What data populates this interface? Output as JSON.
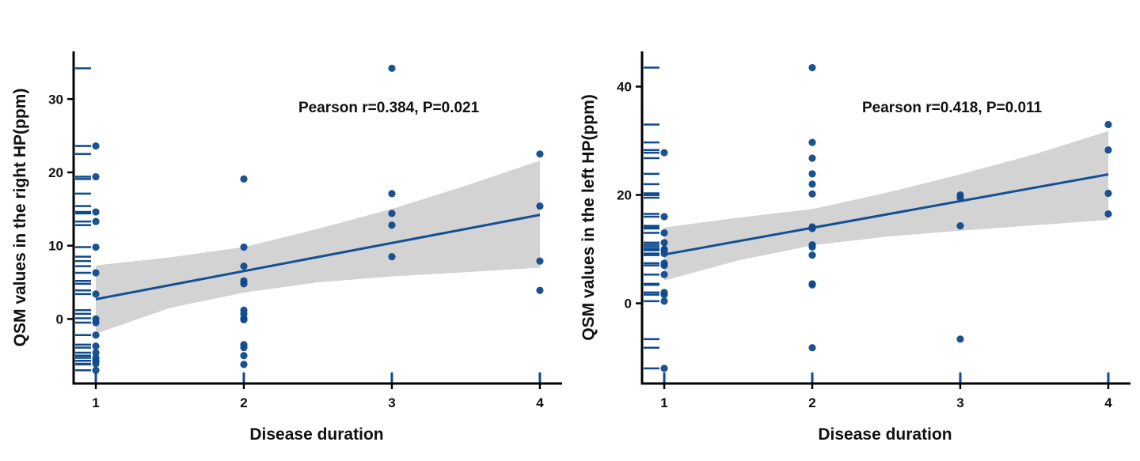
{
  "chart_data": [
    {
      "type": "scatter",
      "xlabel": "Disease duration",
      "ylabel": "QSM values in the right HP(ppm)",
      "annotation": "Pearson r=0.384, P=0.021",
      "xticks": [
        "1",
        "2",
        "3",
        "4"
      ],
      "yticks": [
        "0",
        "10",
        "20",
        "30"
      ],
      "xlim": [
        0.85,
        4.15
      ],
      "ylim": [
        -8.8,
        36.5
      ],
      "fit_line": [
        [
          1,
          2.7
        ],
        [
          4,
          14.2
        ]
      ],
      "confidence_band": {
        "x": [
          1,
          1.5,
          2,
          2.5,
          3,
          3.5,
          4
        ],
        "lower": [
          -2.0,
          1.5,
          3.6,
          5.0,
          5.8,
          6.4,
          7.0
        ],
        "upper": [
          7.3,
          8.4,
          9.8,
          12.3,
          15.0,
          18.2,
          21.6
        ]
      },
      "points": {
        "x": [
          1,
          1,
          1,
          1,
          1,
          1,
          1,
          1,
          1,
          1,
          1,
          1,
          1,
          1,
          1,
          1,
          2,
          2,
          2,
          2,
          2,
          2,
          2,
          2,
          2,
          2,
          2,
          2,
          2,
          3,
          3,
          3,
          3,
          3,
          4,
          4,
          4,
          4
        ],
        "y": [
          23.6,
          19.4,
          14.6,
          13.3,
          9.8,
          6.3,
          3.4,
          0.0,
          -0.5,
          -2.2,
          -3.7,
          -4.6,
          -5.3,
          -5.7,
          -6.1,
          -7.0,
          19.1,
          9.8,
          7.2,
          5.2,
          4.8,
          1.2,
          0.7,
          0.1,
          -0.1,
          -3.5,
          -3.9,
          -5.0,
          -6.2,
          34.2,
          17.1,
          14.4,
          12.8,
          8.5,
          22.5,
          15.4,
          7.9,
          3.9
        ]
      },
      "rug_y": [
        34.2,
        23.6,
        22.5,
        19.4,
        19.1,
        17.1,
        15.4,
        14.6,
        14.4,
        13.3,
        12.8,
        9.8,
        8.5,
        7.9,
        7.2,
        6.3,
        5.2,
        4.8,
        3.9,
        3.4,
        1.2,
        0.7,
        0.1,
        -0.5,
        -2.2,
        -3.5,
        -3.9,
        -4.6,
        -5.0,
        -5.3,
        -5.7,
        -6.1,
        -6.2,
        -7.0
      ],
      "rug_x_count": [
        4,
        1,
        1,
        1
      ]
    },
    {
      "type": "scatter",
      "xlabel": "Disease duration",
      "ylabel": "QSM values in the left HP(ppm)",
      "annotation": "Pearson r=0.418, P=0.011",
      "xticks": [
        "1",
        "2",
        "3",
        "4"
      ],
      "yticks": [
        "0",
        "20",
        "40"
      ],
      "xlim": [
        0.85,
        4.15
      ],
      "ylim": [
        -14.8,
        46.5
      ],
      "fit_line": [
        [
          1,
          9.0
        ],
        [
          4,
          23.8
        ]
      ],
      "confidence_band": {
        "x": [
          1,
          1.5,
          2,
          2.5,
          3,
          3.5,
          4
        ],
        "lower": [
          4.2,
          7.9,
          10.7,
          12.3,
          13.4,
          14.4,
          15.4
        ],
        "upper": [
          14.0,
          15.8,
          17.4,
          20.4,
          23.8,
          27.5,
          31.8
        ]
      },
      "points": {
        "x": [
          1,
          1,
          1,
          1,
          1,
          1,
          1,
          1,
          1,
          1,
          1,
          1,
          1,
          1,
          2,
          2,
          2,
          2,
          2,
          2,
          2,
          2,
          2,
          2,
          2,
          2,
          2,
          2,
          3,
          3,
          3,
          3,
          4,
          4,
          4,
          4
        ],
        "y": [
          27.8,
          16.0,
          13.0,
          11.2,
          10.0,
          9.8,
          9.2,
          7.4,
          7.0,
          5.3,
          2.0,
          1.6,
          0.4,
          -12.0,
          43.5,
          29.7,
          26.8,
          23.9,
          22.0,
          20.2,
          14.1,
          13.8,
          10.8,
          10.4,
          8.9,
          3.6,
          3.4,
          -8.2,
          20.0,
          19.5,
          14.3,
          -6.6,
          33.0,
          28.3,
          20.3,
          16.5
        ]
      },
      "rug_y": [
        43.5,
        33.0,
        29.7,
        28.3,
        27.8,
        26.8,
        23.9,
        22.0,
        20.3,
        20.2,
        20.0,
        19.5,
        16.5,
        16.0,
        14.3,
        14.1,
        13.8,
        13.0,
        11.2,
        10.8,
        10.4,
        10.0,
        9.8,
        9.2,
        8.9,
        7.4,
        7.0,
        5.3,
        3.6,
        3.4,
        2.0,
        1.6,
        0.4,
        -6.6,
        -8.2,
        -12.0
      ],
      "rug_x_count": [
        1,
        1,
        1,
        1
      ]
    }
  ],
  "colors": {
    "point": "#0f4a8c",
    "line": "#134f94",
    "band": "#d3d3d3",
    "axis": "#000000"
  }
}
